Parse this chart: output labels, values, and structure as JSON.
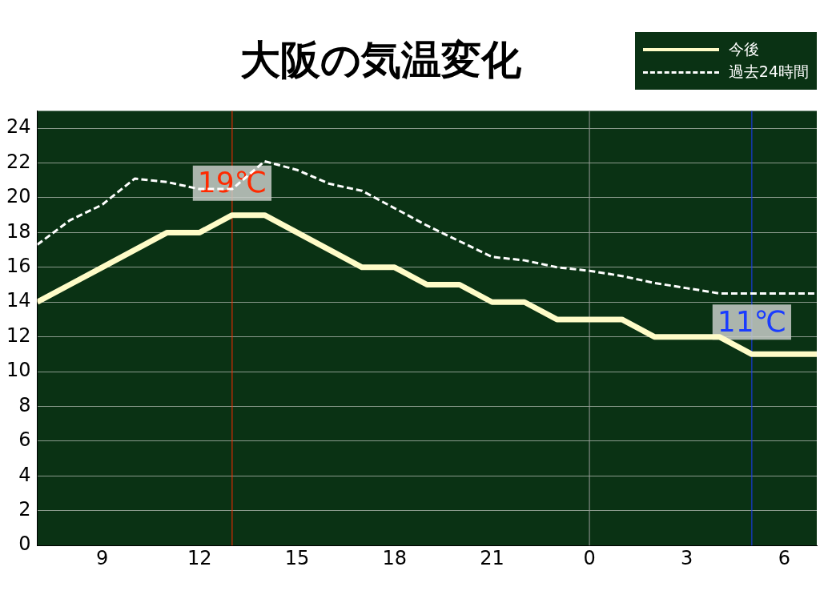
{
  "chart_data": {
    "type": "line",
    "title": "大阪の気温変化",
    "x": [
      "--01-01T07:00",
      "--01-01T08:00",
      "--01-01T09:00",
      "--01-01T10:00",
      "--01-01T11:00",
      "--01-01T12:00",
      "--01-01T13:00",
      "--01-01T14:00",
      "--01-01T15:00",
      "--01-01T16:00",
      "--01-01T17:00",
      "--01-01T18:00",
      "--01-01T19:00",
      "--01-01T20:00",
      "--01-01T21:00",
      "--01-01T22:00",
      "--01-01T23:00",
      "--01-02T00:00",
      "--01-02T01:00",
      "--01-02T02:00",
      "--01-02T03:00",
      "--01-02T04:00",
      "--01-02T05:00",
      "--01-02T06:00",
      "--01-02T07:00"
    ],
    "series": [
      {
        "name": "今後",
        "color": "#fffcc8",
        "line_style": "solid",
        "values": [
          14,
          15,
          16,
          17,
          18,
          18,
          19,
          19,
          18,
          17,
          16,
          16,
          15,
          15,
          14,
          14,
          13,
          13,
          13,
          12,
          12,
          12,
          11,
          11,
          11
        ]
      },
      {
        "name": "過去24時間",
        "color": "#ffffff",
        "line_style": "dashed",
        "values": [
          17.3,
          18.7,
          19.6,
          21.1,
          20.9,
          20.5,
          20.5,
          22.1,
          21.6,
          20.8,
          20.4,
          19.4,
          18.4,
          17.5,
          16.6,
          16.4,
          16.0,
          15.8,
          15.5,
          15.1,
          14.8,
          14.5,
          14.5,
          14.5,
          14.5
        ]
      }
    ],
    "xlim": [
      "--01-01T07:00",
      "--01-02T07:00"
    ],
    "xticks": [
      {
        "value": "--01-01T09:00",
        "label": "9"
      },
      {
        "value": "--01-01T12:00",
        "label": "12"
      },
      {
        "value": "--01-01T15:00",
        "label": "15"
      },
      {
        "value": "--01-01T18:00",
        "label": "18"
      },
      {
        "value": "--01-01T21:00",
        "label": "21"
      },
      {
        "value": "--01-02T00:00",
        "label": "0"
      },
      {
        "value": "--01-02T03:00",
        "label": "3"
      },
      {
        "value": "--01-02T06:00",
        "label": "6"
      }
    ],
    "ylim": [
      0,
      25
    ],
    "yticks": [
      0,
      2,
      4,
      6,
      8,
      10,
      12,
      14,
      16,
      18,
      20,
      22,
      24
    ],
    "grid": "y",
    "legend": "top right",
    "marker": "none",
    "ref_lines": [
      {
        "axis": "x",
        "value": "--01-01T13:00",
        "color": "#ff2a00"
      },
      {
        "axis": "x",
        "value": "--01-02T00:00",
        "color": "#9a9a9a"
      },
      {
        "axis": "x",
        "value": "--01-02T05:00",
        "color": "#1a3cff"
      }
    ],
    "annotations": [
      {
        "text": "19℃",
        "x": "--01-01T13:00",
        "y": 19
      },
      {
        "text": "11℃",
        "x": "--01-02T05:00",
        "y": 11
      }
    ]
  }
}
